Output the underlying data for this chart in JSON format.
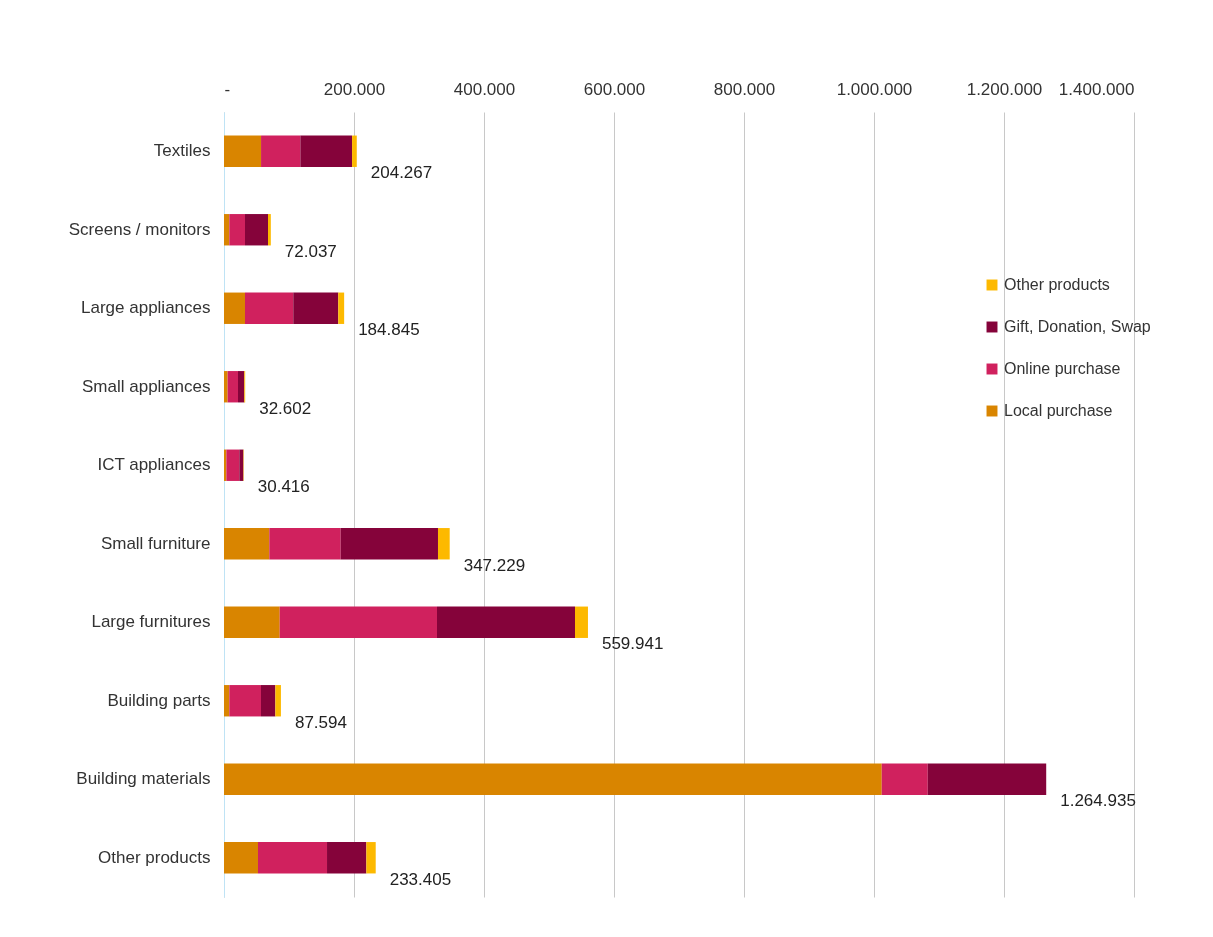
{
  "chart_data": {
    "type": "bar",
    "orientation": "horizontal",
    "stacked": true,
    "categories": [
      "Textiles",
      "Screens / monitors",
      "Large appliances",
      "Small appliances",
      "ICT appliances",
      "Small furniture",
      "Large furnitures",
      "Building parts",
      "Building materials",
      "Other products"
    ],
    "series": [
      {
        "name": "Local purchase",
        "color": "#d98500",
        "values": [
          57000,
          8200,
          32300,
          5600,
          3600,
          69700,
          85700,
          8200,
          1011900,
          52300
        ]
      },
      {
        "name": "Online purchase",
        "color": "#d0215e",
        "values": [
          60500,
          24100,
          74300,
          15900,
          20000,
          109800,
          242000,
          48700,
          70800,
          106200
        ]
      },
      {
        "name": "Gift, Donation, Swap",
        "color": "#85033a",
        "values": [
          79500,
          35400,
          69200,
          9700,
          6200,
          149700,
          212300,
          22100,
          182235,
          60500
        ]
      },
      {
        "name": "Other products",
        "color": "#fdb900",
        "values": [
          7267,
          4337,
          9045,
          1402,
          616,
          18029,
          19941,
          8594,
          0,
          14405
        ]
      }
    ],
    "totals": [
      "204.267",
      "72.037",
      "184.845",
      "32.602",
      "30.416",
      "347.229",
      "559.941",
      "87.594",
      "1.264.935",
      "233.405"
    ],
    "xlim": [
      0,
      1400000
    ],
    "xticks": [
      {
        "value": 0,
        "label": "-"
      },
      {
        "value": 200000,
        "label": "200.000"
      },
      {
        "value": 400000,
        "label": "400.000"
      },
      {
        "value": 600000,
        "label": "600.000"
      },
      {
        "value": 800000,
        "label": "800.000"
      },
      {
        "value": 1000000,
        "label": "1.000.000"
      },
      {
        "value": 1200000,
        "label": "1.200.000"
      },
      {
        "value": 1400000,
        "label": "1.400.000"
      }
    ],
    "grid": "x",
    "legend": "right"
  }
}
